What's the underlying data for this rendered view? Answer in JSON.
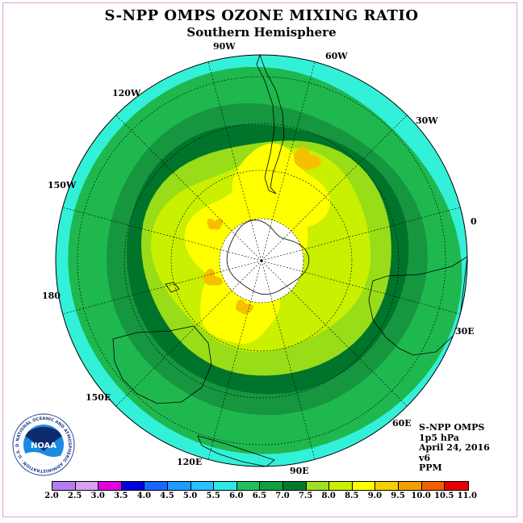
{
  "title": "S-NPP OMPS OZONE MIXING RATIO",
  "subtitle": "Southern Hemisphere",
  "longitude_labels": [
    "90W",
    "60W",
    "30W",
    "0",
    "30E",
    "60E",
    "90E",
    "120E",
    "150E",
    "180",
    "150W",
    "120W"
  ],
  "info": {
    "instrument": "S-NPP OMPS",
    "level": "1p5 hPa",
    "date": "April 24, 2016",
    "version": "v6",
    "units": "PPM"
  },
  "logo": {
    "text": "NOAA",
    "ring_text": "NATIONAL OCEANIC AND ATMOSPHERIC ADMINISTRATION · U.S. DEPARTMENT OF COMMERCE"
  },
  "colorbar": {
    "ticks": [
      "2.0",
      "2.5",
      "3.0",
      "3.5",
      "4.0",
      "4.5",
      "5.0",
      "5.5",
      "6.0",
      "6.5",
      "7.0",
      "7.5",
      "8.0",
      "8.5",
      "9.0",
      "9.5",
      "10.0",
      "10.5",
      "11.0"
    ],
    "colors": [
      "#b57ef0",
      "#d8a0f0",
      "#e000e0",
      "#0000e0",
      "#1868ff",
      "#1c9cff",
      "#28c0ff",
      "#2ee8e8",
      "#20c060",
      "#10a040",
      "#007a2c",
      "#a0e020",
      "#c8f000",
      "#ffff00",
      "#f5d000",
      "#f0a000",
      "#f06000",
      "#e80000",
      "#8a5030"
    ]
  },
  "map_colors": {
    "c55": "#33f0d8",
    "c60": "#1fb84f",
    "c65": "#16963f",
    "c70": "#00742a",
    "c75": "#98dd18",
    "c80": "#c8f000",
    "c85": "#ffff00",
    "c90": "#f5c000",
    "c95": "#f0a000",
    "center": "#ffffff"
  }
}
